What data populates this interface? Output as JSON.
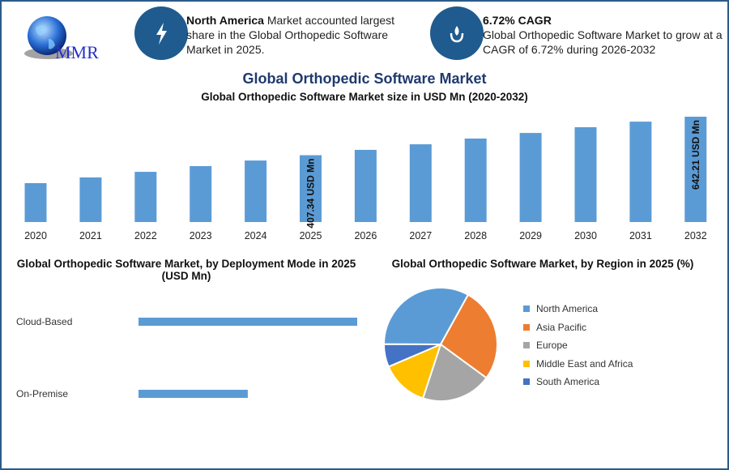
{
  "logo": {
    "text": "MMR"
  },
  "info_left": {
    "icon": "lightning-icon",
    "bold": "North America",
    "text": " Market accounted largest share in the Global Orthopedic Software Market in 2025."
  },
  "info_right": {
    "icon": "hand-drop-icon",
    "bold": "6.72% CAGR",
    "text": "Global Orthopedic Software Market to grow at a CAGR of 6.72% during 2026-2032"
  },
  "main_title": "Global Orthopedic Software Market",
  "chart_data": [
    {
      "type": "bar",
      "title": "Global Orthopedic Software Market size in USD Mn (2020-2032)",
      "categories": [
        "2020",
        "2021",
        "2022",
        "2023",
        "2024",
        "2025",
        "2026",
        "2027",
        "2028",
        "2029",
        "2030",
        "2031",
        "2032"
      ],
      "values": [
        237,
        272,
        306,
        341,
        375,
        407.34,
        440,
        474,
        509,
        543,
        578,
        612,
        642.21
      ],
      "data_labels": {
        "2025": "407.34 USD Mn",
        "2032": "642.21 USD Mn"
      },
      "color": "#5b9bd5",
      "ylim": [
        0,
        642.21
      ],
      "grid": false
    },
    {
      "type": "bar",
      "orientation": "horizontal",
      "title": "Global Orthopedic Software Market, by Deployment Mode in 2025 (USD Mn)",
      "categories": [
        "Cloud-Based",
        "On-Premise"
      ],
      "values": [
        271.6,
        135.7
      ],
      "color": "#5b9bd5",
      "grid": false
    },
    {
      "type": "pie",
      "title": "Global Orthopedic Software Market, by Region in 2025 (%)",
      "labels": [
        "North America",
        "Asia Pacific",
        "Europe",
        "Middle East and Africa",
        "South America"
      ],
      "values": [
        33,
        27,
        20,
        13.5,
        6.5
      ],
      "colors": [
        "#5b9bd5",
        "#ed7d31",
        "#a5a5a5",
        "#ffc000",
        "#4472c4"
      ],
      "legend": "right"
    }
  ]
}
